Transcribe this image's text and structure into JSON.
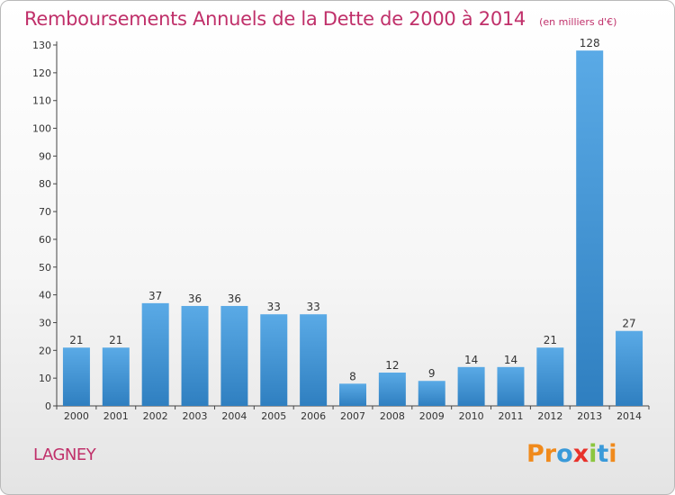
{
  "chart_data": {
    "type": "bar",
    "title": "Remboursements Annuels de la Dette de 2000 à 2014",
    "unit": "(en milliers d'€)",
    "categories": [
      "2000",
      "2001",
      "2002",
      "2003",
      "2004",
      "2005",
      "2006",
      "2007",
      "2008",
      "2009",
      "2010",
      "2011",
      "2012",
      "2013",
      "2014"
    ],
    "values": [
      21,
      21,
      37,
      36,
      36,
      33,
      33,
      8,
      12,
      9,
      14,
      14,
      21,
      128,
      27
    ],
    "ylim": [
      0,
      130
    ],
    "yticks": [
      0,
      10,
      20,
      30,
      40,
      50,
      60,
      70,
      80,
      90,
      100,
      110,
      120,
      130
    ],
    "grid": false,
    "bar_color": "#4f9fdc"
  },
  "footer": {
    "commune": "LAGNEY",
    "logo": [
      {
        "ch": "P",
        "color": "#f08a1c"
      },
      {
        "ch": "r",
        "color": "#f08a1c"
      },
      {
        "ch": "o",
        "color": "#3a9ad9"
      },
      {
        "ch": "x",
        "color": "#e8322b"
      },
      {
        "ch": "i",
        "color": "#8cc63f"
      },
      {
        "ch": "t",
        "color": "#3a9ad9"
      },
      {
        "ch": "i",
        "color": "#f08a1c"
      }
    ]
  }
}
